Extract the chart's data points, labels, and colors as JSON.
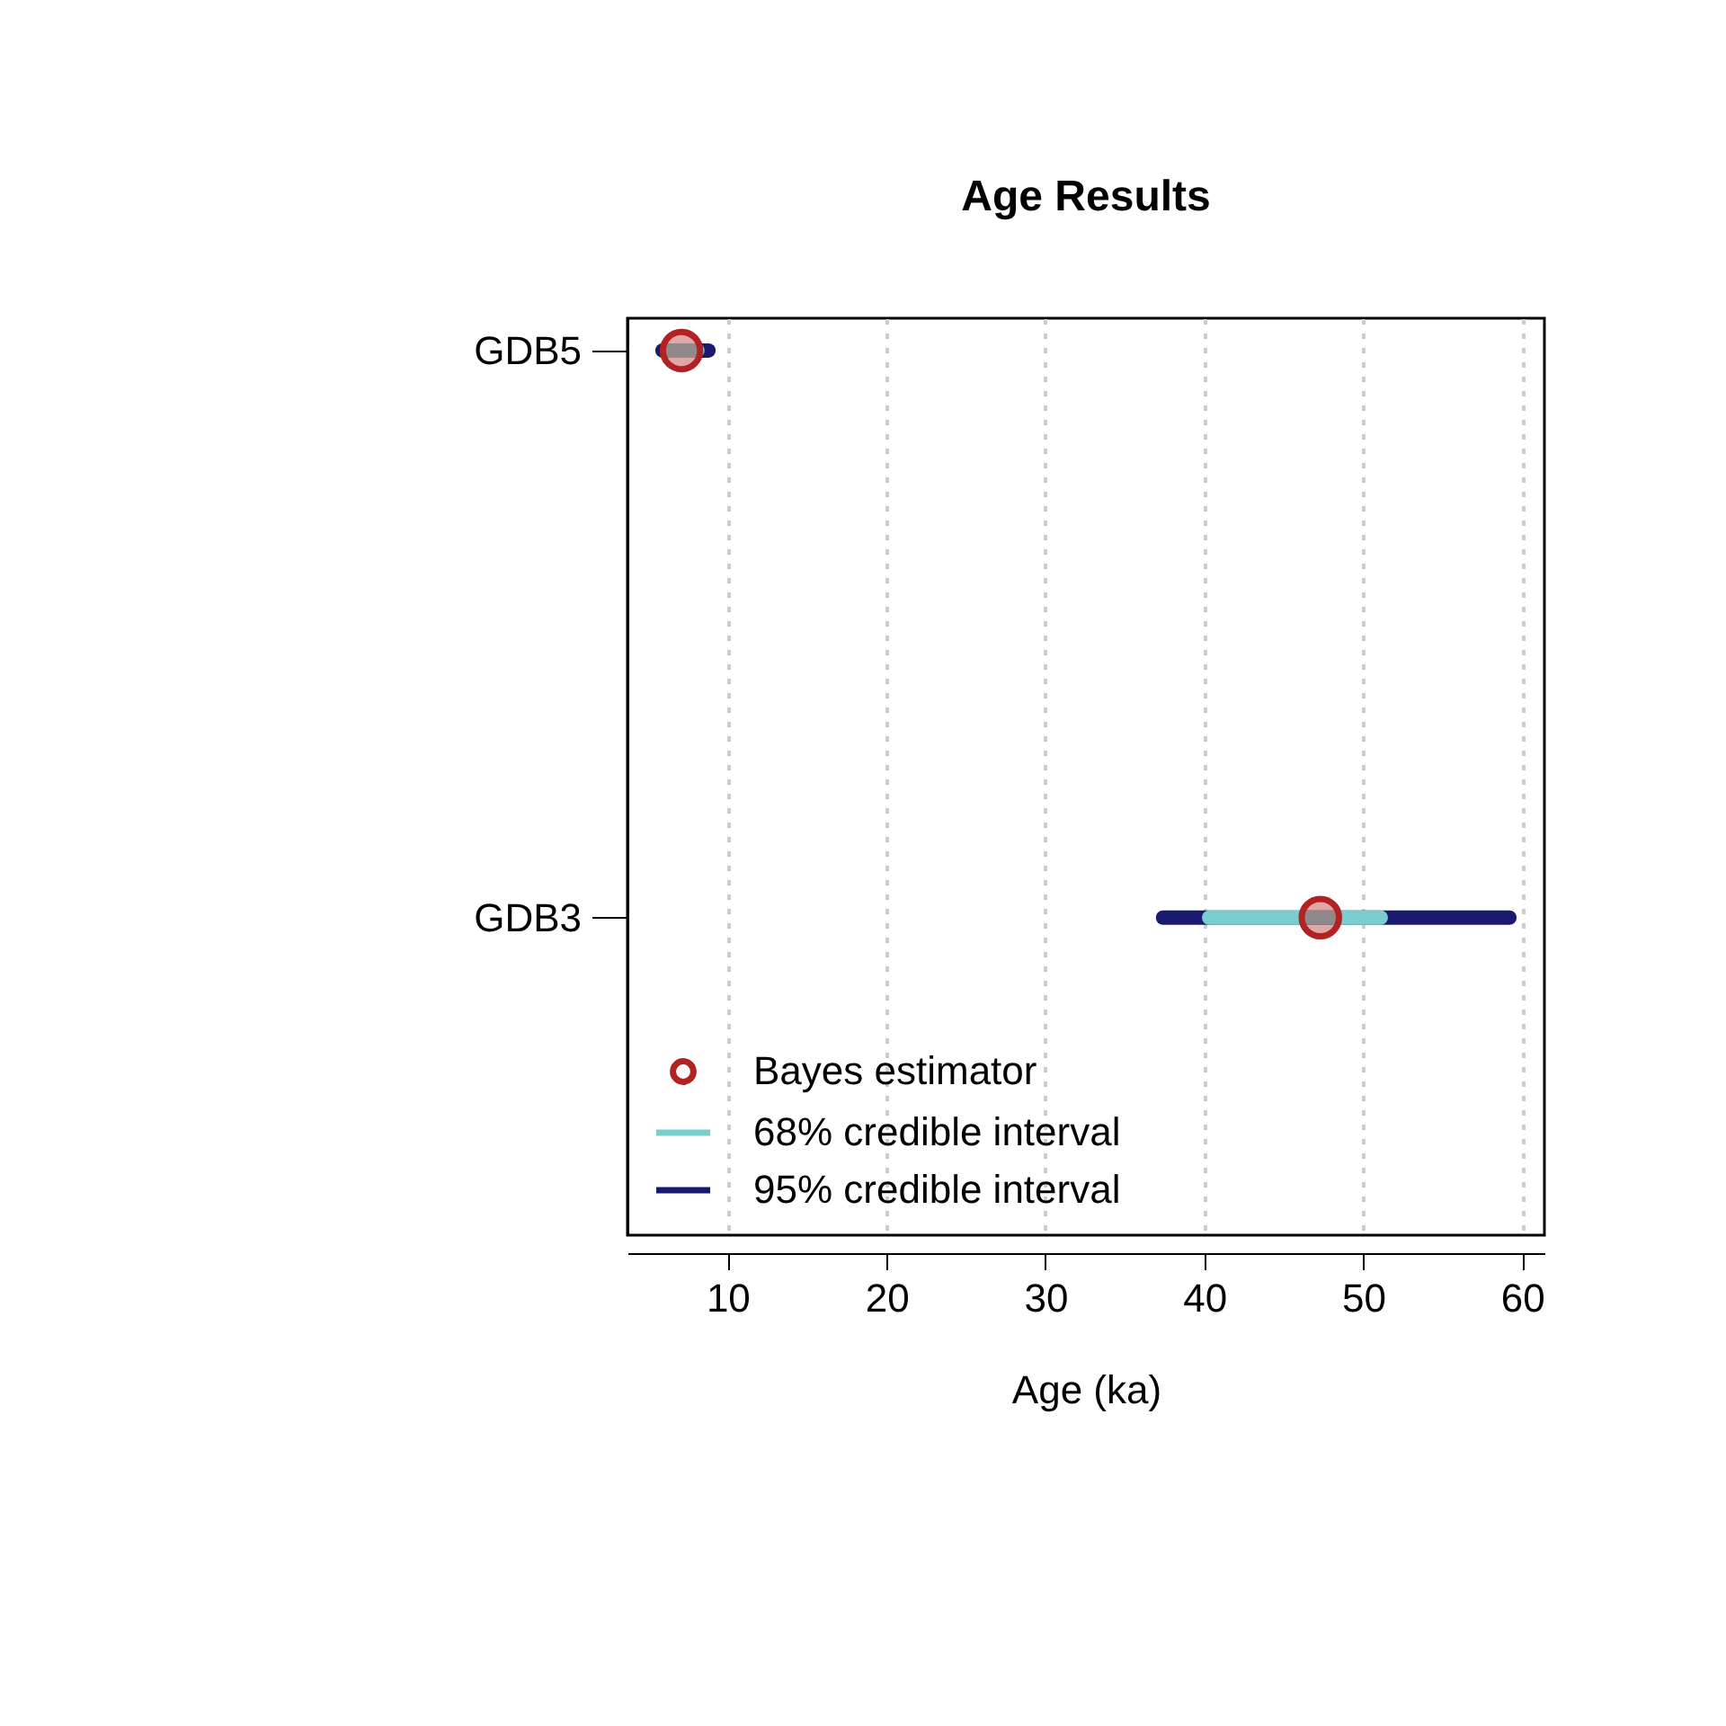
{
  "chart_data": {
    "type": "bar",
    "orientation": "horizontal",
    "title": "Age Results",
    "xlabel": "Age (ka)",
    "categories": [
      "GDB5",
      "GDB3"
    ],
    "xlim": [
      3.7,
      61.4
    ],
    "xticks": [
      10,
      20,
      30,
      40,
      50,
      60
    ],
    "grid": "x",
    "legend": "bottom left",
    "marker": "circle",
    "series": [
      {
        "name": "Bayes estimator",
        "type": "scatter",
        "color": "#b22222",
        "values": [
          7.1,
          47.3
        ]
      },
      {
        "name": "68% credible interval",
        "color": "#79cdcd",
        "base": [
          6.3,
          40.3
        ],
        "values": [
          1.8,
          10.8
        ]
      },
      {
        "name": "95% credible interval",
        "color": "#191970",
        "base": [
          5.9,
          37.4
        ],
        "values": [
          2.9,
          21.8
        ]
      }
    ]
  }
}
